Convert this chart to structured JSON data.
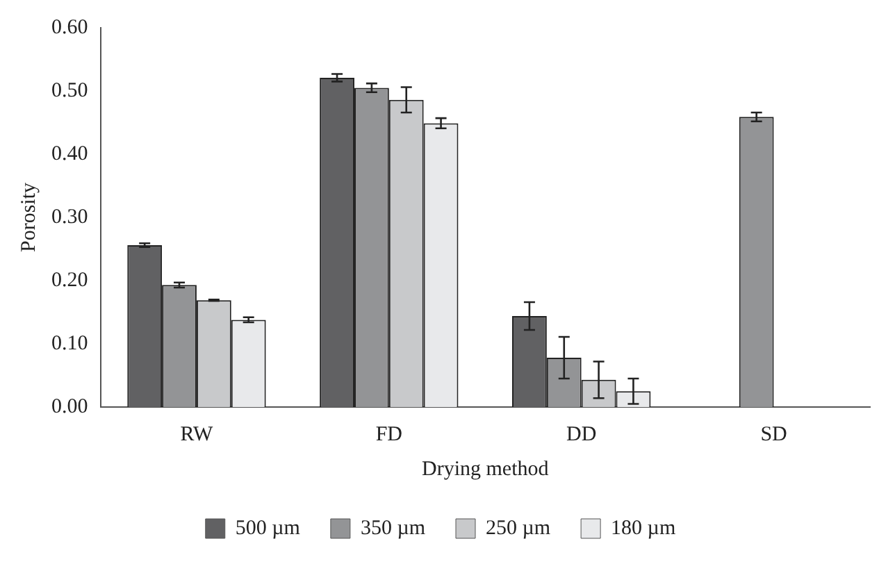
{
  "chart_data": {
    "type": "bar",
    "xlabel": "Drying method",
    "ylabel": "Porosity",
    "categories": [
      "RW",
      "FD",
      "DD",
      "SD"
    ],
    "series": [
      {
        "name": "500 µm",
        "color": "#616163",
        "values": [
          0.256,
          0.521,
          0.144,
          null
        ],
        "errors": [
          0.003,
          0.006,
          0.022,
          null
        ]
      },
      {
        "name": "350 µm",
        "color": "#939496",
        "values": [
          0.193,
          0.505,
          0.078,
          0.459
        ],
        "errors": [
          0.004,
          0.007,
          0.033,
          0.007
        ]
      },
      {
        "name": "250 µm",
        "color": "#c8c9cb",
        "values": [
          0.169,
          0.486,
          0.043,
          null
        ],
        "errors": [
          0.001,
          0.02,
          0.029,
          null
        ]
      },
      {
        "name": "180 µm",
        "color": "#e8e9eb",
        "values": [
          0.138,
          0.449,
          0.025,
          null
        ],
        "errors": [
          0.004,
          0.008,
          0.02,
          null
        ]
      }
    ],
    "ylim": [
      0,
      0.6
    ],
    "yticks": [
      {
        "value": 0,
        "label": "0.00"
      },
      {
        "value": 0.1,
        "label": "0.10"
      },
      {
        "value": 0.2,
        "label": "0.20"
      },
      {
        "value": 0.3,
        "label": "0.30"
      },
      {
        "value": 0.4,
        "label": "0.40"
      },
      {
        "value": 0.5,
        "label": "0.50"
      },
      {
        "value": 0.6,
        "label": "0.60"
      }
    ],
    "grid": false,
    "legend": "bottom"
  }
}
